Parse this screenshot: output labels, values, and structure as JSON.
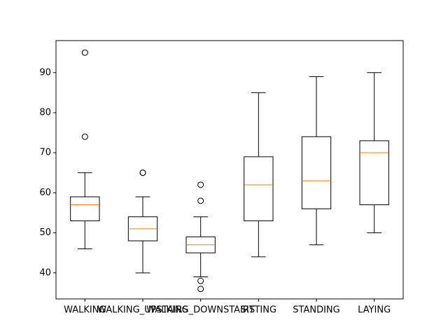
{
  "chart_data": {
    "type": "box",
    "title": "",
    "xlabel": "",
    "ylabel": "",
    "ylim": [
      33.5,
      98
    ],
    "yticks": [
      40,
      50,
      60,
      70,
      80,
      90
    ],
    "categories": [
      "WALKING",
      "WALKING_UPSTAIRS",
      "WALKING_DOWNSTAIRS",
      "SITTING",
      "STANDING",
      "LAYING"
    ],
    "boxes": [
      {
        "category": "WALKING",
        "whisker_low": 46,
        "q1": 53,
        "median": 57,
        "q3": 59,
        "whisker_high": 65,
        "outliers": [
          74,
          95
        ]
      },
      {
        "category": "WALKING_UPSTAIRS",
        "whisker_low": 40,
        "q1": 48,
        "median": 51,
        "q3": 54,
        "whisker_high": 59,
        "outliers": [
          65,
          65
        ]
      },
      {
        "category": "WALKING_DOWNSTAIRS",
        "whisker_low": 39,
        "q1": 45,
        "median": 47,
        "q3": 49,
        "whisker_high": 54,
        "outliers": [
          36,
          38,
          58,
          62
        ]
      },
      {
        "category": "SITTING",
        "whisker_low": 44,
        "q1": 53,
        "median": 62,
        "q3": 69,
        "whisker_high": 85,
        "outliers": []
      },
      {
        "category": "STANDING",
        "whisker_low": 47,
        "q1": 56,
        "median": 63,
        "q3": 74,
        "whisker_high": 89,
        "outliers": []
      },
      {
        "category": "LAYING",
        "whisker_low": 50,
        "q1": 57,
        "median": 70,
        "q3": 73,
        "whisker_high": 90,
        "outliers": []
      }
    ],
    "colors": {
      "box": "#000000",
      "median": "#ff7f0e",
      "outlier": "#000000"
    }
  }
}
